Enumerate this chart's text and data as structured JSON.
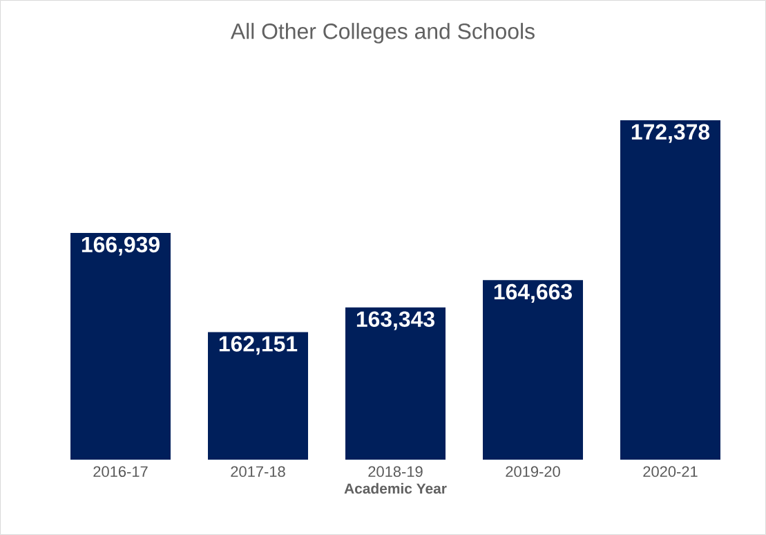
{
  "chart_data": {
    "type": "bar",
    "title": "All Other Colleges and Schools",
    "xlabel": "Academic Year",
    "categories": [
      "2016-17",
      "2017-18",
      "2018-19",
      "2019-20",
      "2020-21"
    ],
    "values": [
      166939,
      162151,
      163343,
      164663,
      172378
    ],
    "value_labels": [
      "166,939",
      "162,151",
      "163,343",
      "164,663",
      "172,378"
    ],
    "color": "#001f5b",
    "ylim": [
      156000,
      172378
    ]
  }
}
